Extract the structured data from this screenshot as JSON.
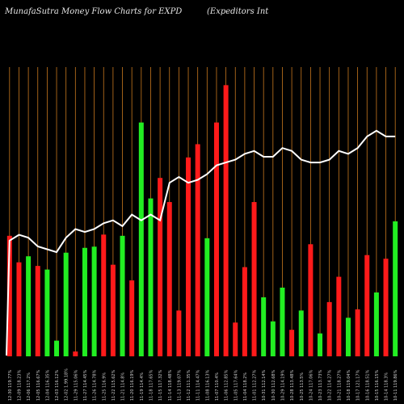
{
  "header": {
    "title": "MunafaSutra  Money Flow  Charts for EXPD",
    "company": "(Expeditors Int"
  },
  "colors": {
    "background": "#000000",
    "grid": "#c8781e",
    "up": "#22ee22",
    "down": "#ff1a1a",
    "line": "#ffffff"
  },
  "chart_data": {
    "type": "bar",
    "title": "MunafaSutra  Money Flow  Charts for EXPD",
    "categories": [
      "12-30 119.77%",
      "12-09 118.23%",
      "12-06 117.2%",
      "12-05 116.67%",
      "12-04 116.35%",
      "12-03 116.12%",
      "12-02 1.99.18%",
      "11-29 115.06%",
      "11-27 114.45%",
      "11-26 114.78%",
      "11-25 116.9%",
      "11-22 115.62%",
      "11-21 114.8%",
      "11-20 116.19%",
      "11-19 114.4%",
      "11-18 117.65%",
      "11-15 117.32%",
      "11-14 118.48%",
      "11-13 119.07%",
      "11-12 111.35%",
      "11-11 114.47%",
      "11-08 116.13%",
      "11-07 110.4%",
      "11-06 112.85%",
      "11-05 117.64%",
      "11-04 118.2%",
      "11-01 112.27%",
      "10-31 112.14%",
      "10-30 112.68%",
      "10-29 114.19%",
      "10-28 113.48%",
      "10-25 113.5%",
      "10-24 117.06%",
      "10-23 113.73%",
      "10-22 114.27%",
      "10-21 118.27%",
      "10-18 119.04%",
      "10-17 121.17%",
      "10-16 118.51%",
      "10-15 116.15%",
      "10-14 118.3%",
      "10-11 119.86%"
    ],
    "values": [
      100,
      78,
      83,
      75,
      72,
      13,
      86,
      4,
      90,
      91,
      101,
      76,
      100,
      63,
      194,
      131,
      148,
      128,
      38,
      165,
      176,
      98,
      194,
      225,
      28,
      74,
      128,
      49,
      29,
      57,
      22,
      38,
      93,
      19,
      45,
      66,
      32,
      39,
      84,
      53,
      81,
      112
    ],
    "directions": [
      "down",
      "down",
      "up",
      "down",
      "up",
      "up",
      "up",
      "down",
      "up",
      "up",
      "down",
      "down",
      "up",
      "down",
      "up",
      "up",
      "down",
      "down",
      "down",
      "down",
      "down",
      "up",
      "down",
      "down",
      "down",
      "down",
      "down",
      "up",
      "up",
      "up",
      "down",
      "up",
      "down",
      "up",
      "down",
      "down",
      "up",
      "down",
      "down",
      "up",
      "down",
      "up"
    ],
    "line_values": [
      60,
      58,
      59,
      62,
      63,
      64,
      59,
      56,
      57,
      56,
      54,
      53,
      55,
      51,
      53,
      51,
      53,
      40,
      38,
      40,
      39,
      37,
      34,
      33,
      32,
      30,
      29,
      31,
      31,
      28,
      29,
      32,
      33,
      33,
      32,
      29,
      30,
      28,
      24,
      22,
      24,
      24
    ],
    "bar_order": "left-to-right is newest-to-oldest",
    "grid": true
  }
}
